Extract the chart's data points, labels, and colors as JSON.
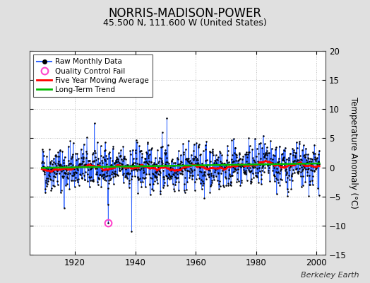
{
  "title": "NORRIS-MADISON-POWER",
  "subtitle": "45.500 N, 111.600 W (United States)",
  "ylabel": "Temperature Anomaly (°C)",
  "xlim": [
    1905,
    2003
  ],
  "ylim": [
    -15,
    20
  ],
  "yticks": [
    -15,
    -10,
    -5,
    0,
    5,
    10,
    15,
    20
  ],
  "xticks": [
    1920,
    1940,
    1960,
    1980,
    2000
  ],
  "start_year": 1909,
  "end_year": 2000,
  "raw_line_color": "#3366ff",
  "raw_marker_color": "#000000",
  "moving_avg_color": "#ff0000",
  "trend_color": "#00bb00",
  "qc_fail_color": "#ff44cc",
  "qc_fail_year": 1931,
  "qc_fail_month": 1,
  "qc_fail_value": -9.5,
  "background_color": "#e0e0e0",
  "plot_bg_color": "#ffffff",
  "watermark": "Berkeley Earth",
  "legend_labels": [
    "Raw Monthly Data",
    "Quality Control Fail",
    "Five Year Moving Average",
    "Long-Term Trend"
  ],
  "seed": 42
}
